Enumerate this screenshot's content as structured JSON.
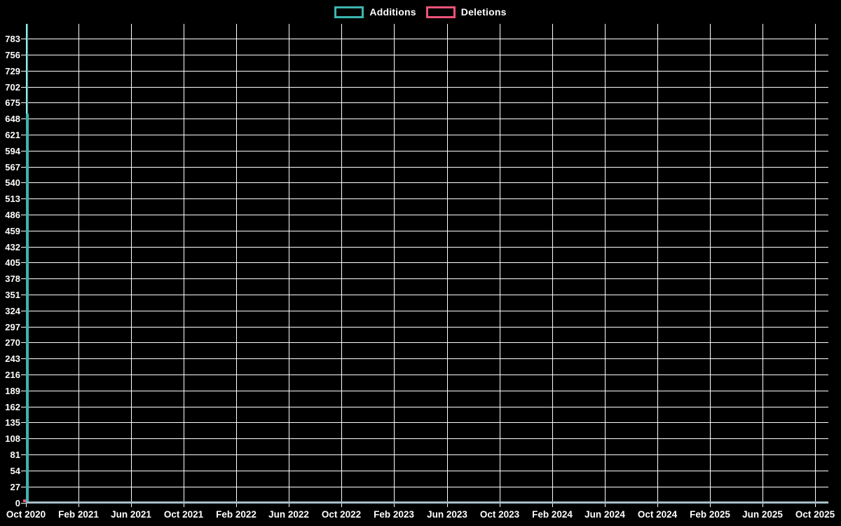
{
  "chart_data": {
    "type": "bar",
    "title": "",
    "background": "#000000",
    "legend_position": "top-center",
    "legend": [
      {
        "label": "Additions",
        "color": "#3cb5af"
      },
      {
        "label": "Deletions",
        "color": "#ed5378"
      }
    ],
    "grid": {
      "visible": true,
      "color": "#ffffff"
    },
    "x_axis": {
      "tick_labels": [
        "Oct 2020",
        "Feb 2021",
        "Jun 2021",
        "Oct 2021",
        "Feb 2022",
        "Jun 2022",
        "Oct 2022",
        "Feb 2023",
        "Jun 2023",
        "Oct 2023",
        "Feb 2024",
        "Jun 2024",
        "Oct 2024",
        "Feb 2025",
        "Jun 2025",
        "Oct 2025"
      ],
      "baseline_color": "#a6c0c9"
    },
    "y_axis": {
      "min": 0,
      "tick_step": 27,
      "axis_max": 808,
      "tick_labels": [
        0,
        27,
        54,
        81,
        108,
        135,
        162,
        189,
        216,
        243,
        270,
        297,
        324,
        351,
        378,
        405,
        432,
        459,
        486,
        513,
        540,
        567,
        594,
        621,
        648,
        675,
        702,
        729,
        756,
        783
      ]
    },
    "series": [
      {
        "name": "Additions",
        "color": "#3cb5af",
        "bars": [
          {
            "x": "Oct 2020",
            "value": 808
          },
          {
            "x": "Oct 2020",
            "value": 656
          }
        ]
      },
      {
        "name": "Deletions",
        "color": "#ed5378",
        "bars": [
          {
            "x": "Oct 2020",
            "value": 5
          }
        ]
      }
    ]
  }
}
